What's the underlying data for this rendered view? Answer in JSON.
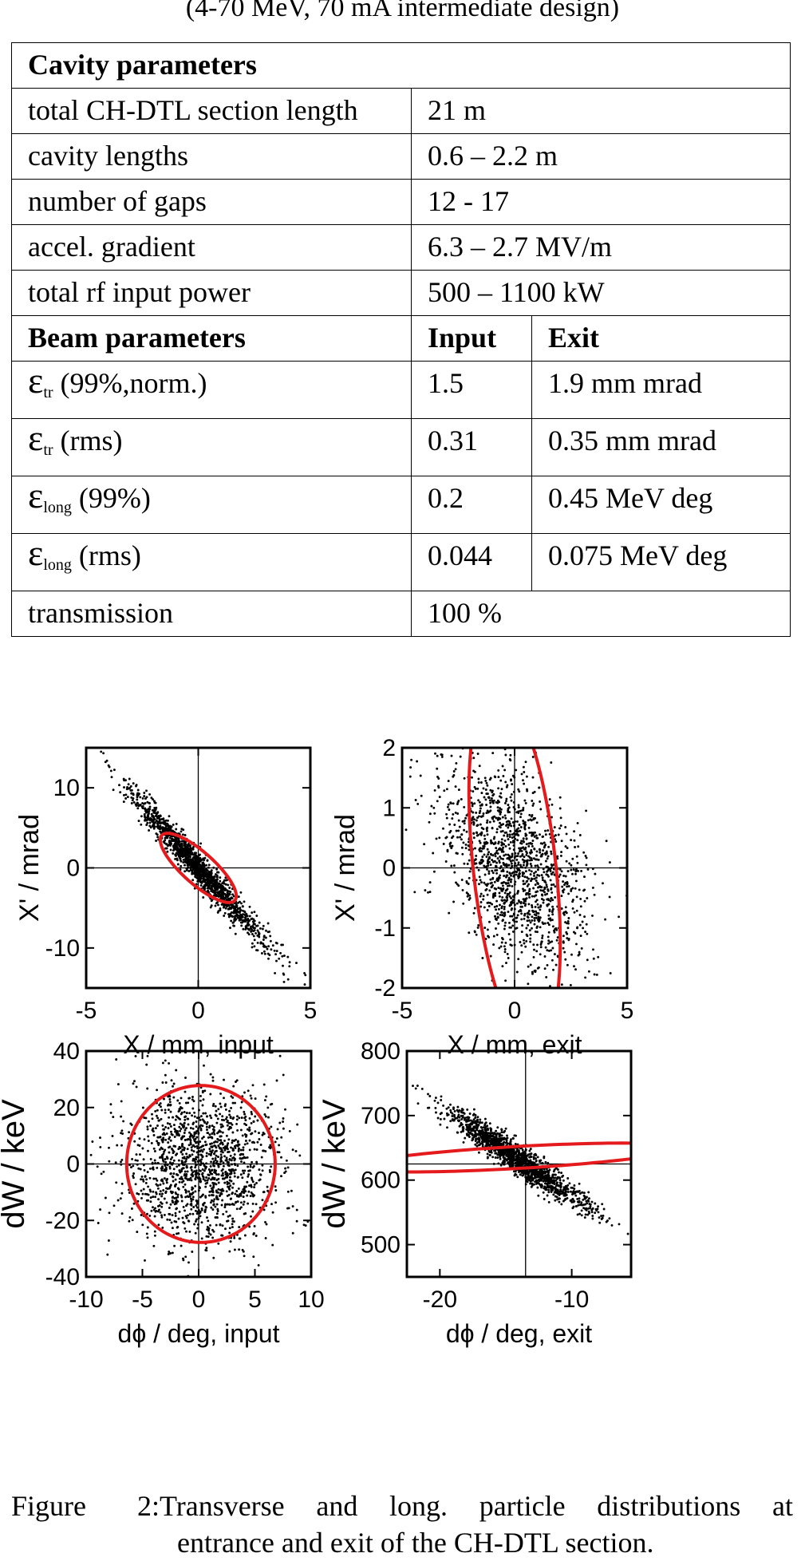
{
  "header": {
    "subtitle": "(4-70 MeV, 70 mA intermediate design)"
  },
  "table": {
    "cavity_heading": "Cavity parameters",
    "cavity_rows": [
      {
        "label": "total CH-DTL section length",
        "value": "21 m"
      },
      {
        "label": "cavity lengths",
        "value": "0.6 – 2.2 m"
      },
      {
        "label": "number of gaps",
        "value": "12 - 17"
      },
      {
        "label": "accel. gradient",
        "value": "6.3 – 2.7 MV/m"
      },
      {
        "label": "total rf input power",
        "value": "500 – 1100 kW"
      }
    ],
    "beam_heading": "Beam parameters",
    "beam_col_input": "Input",
    "beam_col_exit": "Exit",
    "beam_rows": [
      {
        "symbol": "ε",
        "sub": "tr",
        "suffix": " (99%,norm.)",
        "input": "1.5",
        "exit": "1.9 mm mrad"
      },
      {
        "symbol": "ε",
        "sub": "tr",
        "suffix": " (rms)",
        "input": "0.31",
        "exit": "0.35 mm mrad"
      },
      {
        "symbol": "ε",
        "sub": "long",
        "suffix": " (99%)",
        "input": "0.2",
        "exit": "0.45 MeV deg"
      },
      {
        "symbol": "ε",
        "sub": "long",
        "suffix": " (rms)",
        "input": "0.044",
        "exit": "0.075 MeV deg"
      }
    ],
    "transmission_label": "transmission",
    "transmission_value": "100 %"
  },
  "chart_data": [
    {
      "type": "scatter",
      "title": "",
      "xlabel": "X / mm,  input",
      "ylabel": "X' / mrad",
      "xlim": [
        -5,
        5
      ],
      "ylim": [
        -15,
        15
      ],
      "xticks": [
        -5,
        0,
        5
      ],
      "yticks": [
        -10,
        0,
        10
      ],
      "ellipse": {
        "cx": 0,
        "cy": 0,
        "a": 4.55,
        "b": 0.95,
        "angle_deg": -71.6
      },
      "points": {
        "count": 1500,
        "cov": [
          [
            2.43,
            -7.5
          ],
          [
            -7.5,
            24.2
          ]
        ]
      }
    },
    {
      "type": "scatter",
      "title": "",
      "xlabel": "X / mm,  exit",
      "ylabel": "X' / mrad",
      "xlim": [
        -5,
        5
      ],
      "ylim": [
        -2,
        2
      ],
      "xticks": [
        -5,
        0,
        5
      ],
      "yticks": [
        -2,
        -1,
        0,
        1,
        2
      ],
      "ellipse": {
        "cx": 0,
        "cy": 0,
        "a": 1.75,
        "b": 3.2,
        "angle_deg": 22.5
      },
      "points": {
        "count": 1500,
        "cov": [
          [
            2.6,
            -0.55
          ],
          [
            -0.55,
            0.72
          ]
        ]
      }
    },
    {
      "type": "scatter",
      "title": "",
      "xlabel": "dϕ / deg,  input",
      "ylabel": "dW  / keV",
      "xlim": [
        -10,
        10
      ],
      "ylim": [
        -40,
        40
      ],
      "xticks": [
        -10,
        -5,
        0,
        5,
        10
      ],
      "yticks": [
        -40,
        -20,
        0,
        20,
        40
      ],
      "ellipse": {
        "cx": 0.2,
        "cy": 0,
        "a": 6.6,
        "b": 27.8,
        "angle_deg": 0
      },
      "points": {
        "count": 1500,
        "cov": [
          [
            11.5,
            0
          ],
          [
            0,
            200
          ]
        ]
      }
    },
    {
      "type": "scatter",
      "title": "",
      "xlabel": "dϕ / deg,  exit",
      "ylabel": "dW  / keV",
      "xlim": [
        -22.5,
        -5.5
      ],
      "ylim": [
        450,
        800
      ],
      "xticks": [
        -20,
        -10
      ],
      "yticks": [
        500,
        600,
        700,
        800
      ],
      "axis_cross": {
        "x": -13.5,
        "y": 625
      },
      "ellipse": {
        "cx": -14.2,
        "cy": 635,
        "a": 8.8,
        "b": 24,
        "angle_deg": -23.0
      },
      "points": {
        "count": 1500,
        "cov": [
          [
            6.9,
            -95
          ],
          [
            -95,
            1450
          ]
        ]
      }
    }
  ],
  "caption": {
    "label": "Figure 2:",
    "line1": "Transverse and long. particle distributions at",
    "line2": "entrance and exit of the CH-DTL section."
  }
}
